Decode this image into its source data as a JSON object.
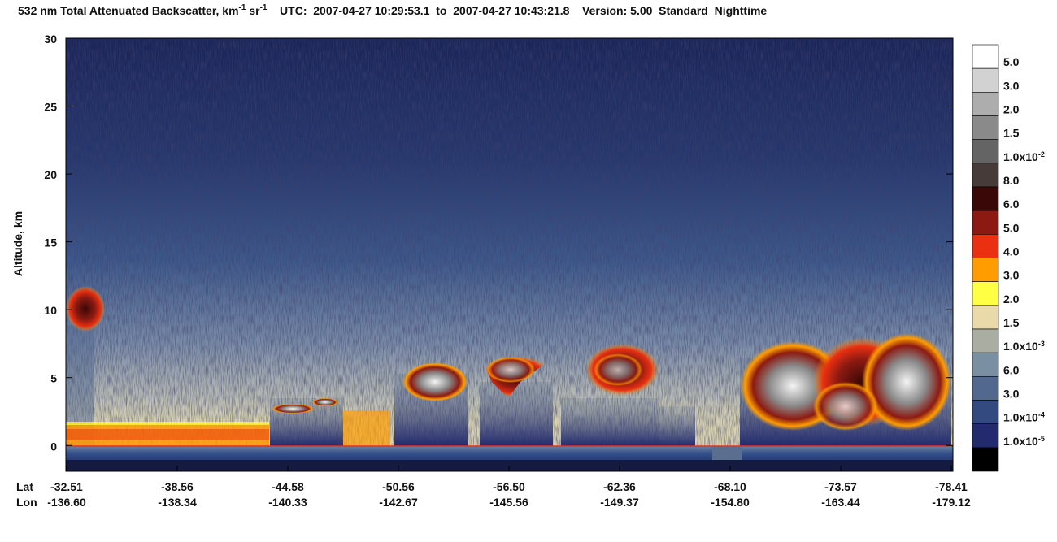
{
  "chart_data": {
    "type": "curtain",
    "title": [
      {
        "text": "532 nm Total Attenuated Backscatter, km"
      },
      {
        "sup": "-1"
      },
      {
        "text": " sr"
      },
      {
        "sup": "-1"
      },
      {
        "text": "    UTC:  2007-04-27 10:29:53.1  to  2007-04-27 10:43:21.8    Version: 5.00  Standard  Nighttime"
      }
    ],
    "ylabel": "Altitude, km",
    "ylim": [
      -1.9,
      30
    ],
    "yticks": [
      0,
      5,
      10,
      15,
      20,
      25,
      30
    ],
    "x_rows": [
      {
        "name": "Lat",
        "labels": [
          -32.51,
          -38.56,
          -44.58,
          -50.56,
          {
            "value": -56.5,
            "label": "-56.50"
          },
          -62.36,
          {
            "value": -68.1,
            "label": "-68.10"
          },
          -73.57,
          -78.41
        ]
      },
      {
        "name": "Lon",
        "labels": [
          {
            "value": -136.6,
            "label": "-136.60"
          },
          -138.34,
          -140.33,
          -142.67,
          -145.56,
          -149.37,
          {
            "value": -154.8,
            "label": "-154.80"
          },
          -163.44,
          -179.12
        ]
      }
    ],
    "colorbar": {
      "colors": [
        "#ffffff",
        "#d2d2d2",
        "#adadad",
        "#8a8a8a",
        "#646464",
        "#463b38",
        "#3a0806",
        "#8c1a12",
        "#ea3010",
        "#ff9c00",
        "#ffff44",
        "#eadaaa",
        "#a9ada2",
        "#7a90a2",
        "#52688e",
        "#324a80",
        "#232a6e",
        "#000000"
      ],
      "labels": [
        "5.0",
        "3.0",
        "2.0",
        "1.5",
        {
          "text": "1.0x10",
          "sup": "-2"
        },
        "8.0",
        "6.0",
        "5.0",
        "4.0",
        "3.0",
        "2.0",
        "1.5",
        {
          "text": "1.0x10",
          "sup": "-3"
        },
        "6.0",
        "3.0",
        {
          "text": "1.0x10",
          "sup": "-4"
        },
        {
          "text": "1.0x10",
          "sup": "-5"
        }
      ]
    }
  }
}
